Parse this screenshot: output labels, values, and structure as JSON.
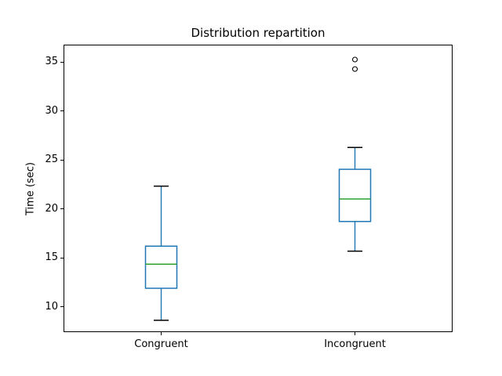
{
  "figure": {
    "background": "#ffffff"
  },
  "chart_data": {
    "type": "boxplot",
    "title": "Distribution repartition",
    "xlabel": "",
    "ylabel": "Time (sec)",
    "categories": [
      "Congruent",
      "Incongruent"
    ],
    "positions": [
      1,
      2
    ],
    "xlim": [
      0.5,
      2.5
    ],
    "ylim": [
      7.5,
      36.7
    ],
    "yticks": [
      10,
      15,
      20,
      25,
      30,
      35
    ],
    "grid": false,
    "legend": "none",
    "boxes": [
      {
        "label": "Congruent",
        "whislo": 8.63,
        "q1": 11.9,
        "med": 14.36,
        "q3": 16.2,
        "whishi": 22.33,
        "fliers": []
      },
      {
        "label": "Incongruent",
        "whislo": 15.69,
        "q1": 18.72,
        "med": 21.02,
        "q3": 24.05,
        "whishi": 26.28,
        "fliers": [
          34.29,
          35.26
        ]
      }
    ],
    "colors": {
      "box": "#1f77b4",
      "whisker": "#1f77b4",
      "median": "#2ca02c",
      "cap": "#000000",
      "flier": "#000000",
      "spine": "#000000",
      "text": "#000000",
      "background": "#ffffff"
    }
  }
}
